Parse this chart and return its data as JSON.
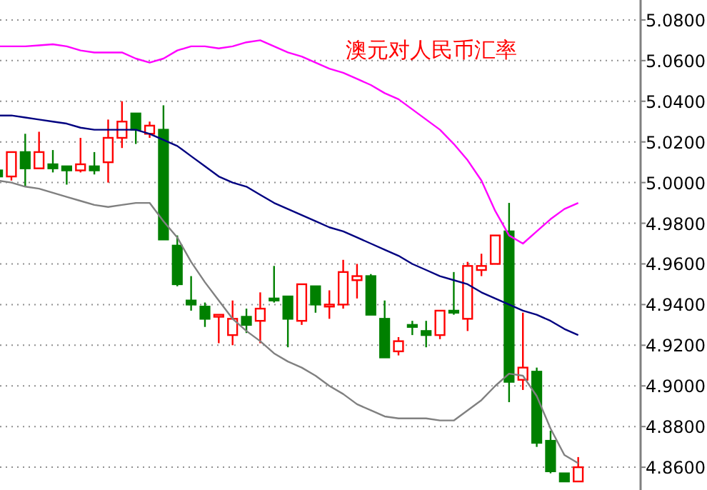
{
  "chart_data": {
    "type": "candlestick",
    "title": "澳元对人民币汇率",
    "categories": [
      null,
      null,
      null,
      null,
      null,
      null,
      null,
      null,
      null,
      null,
      null,
      null,
      null,
      null,
      null,
      null,
      null,
      null,
      null,
      null,
      null,
      null,
      null,
      null,
      null,
      null,
      null,
      null,
      null,
      null,
      null,
      null,
      null,
      null,
      null,
      null,
      null,
      null,
      null,
      null,
      null,
      null,
      null
    ],
    "ohlc": [
      [
        5.006,
        5.007,
        5.003,
        5.003
      ],
      [
        5.003,
        5.015,
        5.001,
        5.015
      ],
      [
        5.015,
        5.024,
        4.998,
        5.007
      ],
      [
        5.007,
        5.025,
        5.007,
        5.015
      ],
      [
        5.009,
        5.016,
        5.005,
        5.007
      ],
      [
        5.008,
        5.008,
        4.999,
        5.006
      ],
      [
        5.006,
        5.022,
        5.005,
        5.009
      ],
      [
        5.008,
        5.015,
        5.004,
        5.006
      ],
      [
        5.01,
        5.031,
        5.0,
        5.022
      ],
      [
        5.022,
        5.04,
        5.017,
        5.03
      ],
      [
        5.034,
        5.034,
        5.019,
        5.026
      ],
      [
        5.024,
        5.03,
        5.022,
        5.028
      ],
      [
        5.026,
        5.038,
        4.972,
        4.972
      ],
      [
        4.969,
        4.974,
        4.949,
        4.95
      ],
      [
        4.942,
        4.954,
        4.937,
        4.94
      ],
      [
        4.939,
        4.941,
        4.929,
        4.933
      ],
      [
        4.934,
        4.935,
        4.921,
        4.935
      ],
      [
        4.925,
        4.942,
        4.92,
        4.933
      ],
      [
        4.934,
        4.938,
        4.926,
        4.93
      ],
      [
        4.932,
        4.946,
        4.921,
        4.938
      ],
      [
        4.943,
        4.959,
        4.941,
        4.942
      ],
      [
        4.944,
        4.944,
        4.919,
        4.933
      ],
      [
        4.932,
        4.95,
        4.93,
        4.95
      ],
      [
        4.949,
        4.949,
        4.936,
        4.94
      ],
      [
        4.939,
        4.947,
        4.933,
        4.94
      ],
      [
        4.94,
        4.962,
        4.938,
        4.956
      ],
      [
        4.952,
        4.96,
        4.943,
        4.954
      ],
      [
        4.954,
        4.955,
        4.935,
        4.935
      ],
      [
        4.933,
        4.942,
        4.914,
        4.914
      ],
      [
        4.917,
        4.924,
        4.915,
        4.922
      ],
      [
        4.93,
        4.932,
        4.925,
        4.929
      ],
      [
        4.927,
        4.932,
        4.919,
        4.925
      ],
      [
        4.925,
        4.937,
        4.923,
        4.937
      ],
      [
        4.937,
        4.956,
        4.935,
        4.936
      ],
      [
        4.933,
        4.961,
        4.927,
        4.959
      ],
      [
        4.957,
        4.965,
        4.954,
        4.959
      ],
      [
        4.96,
        4.974,
        4.96,
        4.974
      ],
      [
        4.976,
        4.99,
        4.892,
        4.902
      ],
      [
        4.903,
        4.936,
        4.898,
        4.909
      ],
      [
        4.907,
        4.909,
        4.87,
        4.872
      ],
      [
        4.873,
        4.878,
        4.857,
        4.858
      ],
      [
        4.857,
        4.857,
        4.853,
        4.853
      ],
      [
        4.853,
        4.865,
        4.853,
        4.86
      ]
    ],
    "colors": [
      "#008000",
      "#ff0000",
      "#008000",
      "#ff0000",
      "#008000",
      "#008000",
      "#ff0000",
      "#008000",
      "#ff0000",
      "#ff0000",
      "#008000",
      "#ff0000",
      "#008000",
      "#008000",
      "#008000",
      "#008000",
      "#ff0000",
      "#ff0000",
      "#008000",
      "#ff0000",
      "#008000",
      "#008000",
      "#ff0000",
      "#008000",
      "#ff0000",
      "#ff0000",
      "#ff0000",
      "#008000",
      "#008000",
      "#ff0000",
      "#008000",
      "#008000",
      "#ff0000",
      "#008000",
      "#ff0000",
      "#ff0000",
      "#ff0000",
      "#008000",
      "#ff0000",
      "#008000",
      "#008000",
      "#008000",
      "#ff0000"
    ],
    "series": [
      {
        "type": "line",
        "color": "#ff00ff",
        "values": [
          5.067,
          5.067,
          5.067,
          5.0675,
          5.068,
          5.067,
          5.065,
          5.064,
          5.064,
          5.064,
          5.061,
          5.059,
          5.061,
          5.065,
          5.067,
          5.067,
          5.066,
          5.067,
          5.069,
          5.07,
          5.067,
          5.064,
          5.062,
          5.059,
          5.056,
          5.054,
          5.051,
          5.048,
          5.044,
          5.041,
          5.036,
          5.031,
          5.026,
          5.019,
          5.011,
          5.001,
          4.986,
          4.974,
          4.97,
          4.976,
          4.982,
          4.987,
          4.99
        ]
      },
      {
        "type": "line",
        "color": "#000080",
        "values": [
          5.033,
          5.033,
          5.032,
          5.031,
          5.03,
          5.029,
          5.027,
          5.026,
          5.026,
          5.026,
          5.026,
          5.024,
          5.021,
          5.018,
          5.013,
          5.008,
          5.003,
          5.0,
          4.998,
          4.994,
          4.99,
          4.987,
          4.984,
          4.981,
          4.978,
          4.976,
          4.973,
          4.97,
          4.967,
          4.964,
          4.96,
          4.957,
          4.954,
          4.952,
          4.95,
          4.946,
          4.943,
          4.94,
          4.937,
          4.935,
          4.932,
          4.928,
          4.925
        ]
      },
      {
        "type": "line",
        "color": "#808080",
        "values": [
          5.001,
          5.0,
          4.998,
          4.997,
          4.995,
          4.993,
          4.991,
          4.989,
          4.988,
          4.989,
          4.99,
          4.99,
          4.981,
          4.973,
          4.961,
          4.951,
          4.942,
          4.933,
          4.927,
          4.922,
          4.916,
          4.912,
          4.909,
          4.905,
          4.9,
          4.896,
          4.891,
          4.888,
          4.885,
          4.884,
          4.884,
          4.884,
          4.883,
          4.883,
          4.888,
          4.893,
          4.9,
          4.906,
          4.905,
          4.895,
          4.879,
          4.866,
          4.862
        ]
      }
    ],
    "ylim": [
      4.8488,
      5.0898
    ],
    "yticks": [
      {
        "value": 4.86,
        "label": "4.8600"
      },
      {
        "value": 4.88,
        "label": "4.8800"
      },
      {
        "value": 4.9,
        "label": "4.9000"
      },
      {
        "value": 4.92,
        "label": "4.9200"
      },
      {
        "value": 4.94,
        "label": "4.9400"
      },
      {
        "value": 4.96,
        "label": "4.9600"
      },
      {
        "value": 4.98,
        "label": "4.9800"
      },
      {
        "value": 5.0,
        "label": "5.0000"
      },
      {
        "value": 5.02,
        "label": "5.0200"
      },
      {
        "value": 5.04,
        "label": "5.0400"
      },
      {
        "value": 5.06,
        "label": "5.0600"
      },
      {
        "value": 5.08,
        "label": "5.0800"
      }
    ],
    "grid": "y",
    "tick_labels": "y"
  }
}
